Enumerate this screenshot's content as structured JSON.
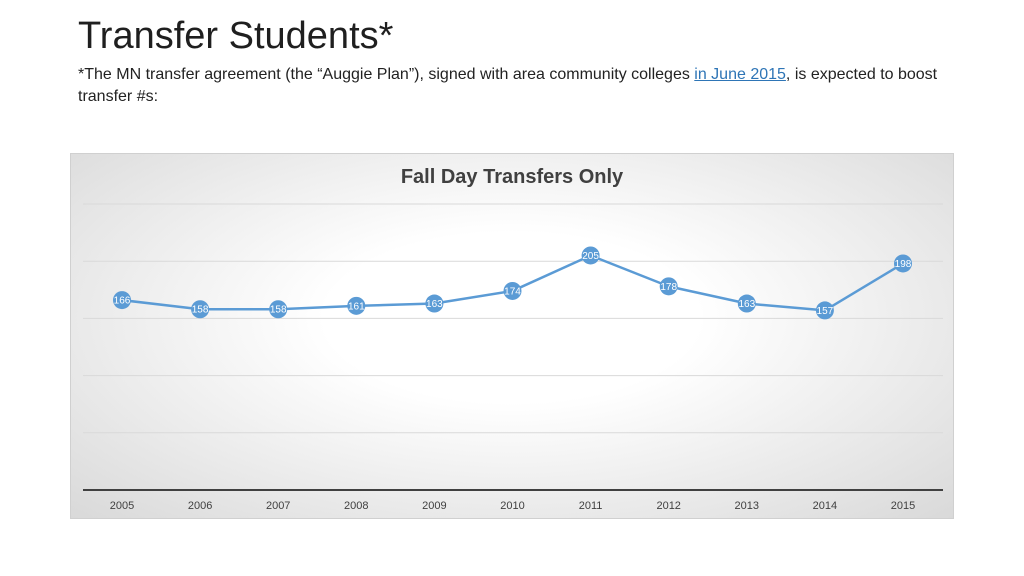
{
  "slide": {
    "title": "Transfer Students*",
    "subtitle_before": " *The MN transfer agreement (the “Auggie Plan”), signed with area community colleges ",
    "subtitle_link": "in June 2015",
    "subtitle_after": ", is expected to boost transfer #s:"
  },
  "colors": {
    "line": "#5b9bd5",
    "marker": "#5b9bd5",
    "label": "#ffffff"
  },
  "chart_data": {
    "type": "line",
    "title": "Fall Day Transfers Only",
    "categories": [
      "2005",
      "2006",
      "2007",
      "2008",
      "2009",
      "2010",
      "2011",
      "2012",
      "2013",
      "2014",
      "2015"
    ],
    "values": [
      166,
      158,
      158,
      161,
      163,
      174,
      205,
      178,
      163,
      157,
      198
    ],
    "ylim": [
      0,
      250
    ],
    "grid": true,
    "legend": "none",
    "data_labels": true
  }
}
